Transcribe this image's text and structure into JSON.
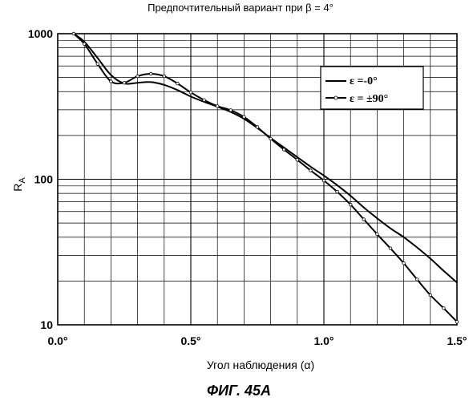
{
  "chart_data": {
    "type": "line",
    "title": "Предпочтительный вариант при β = 4°",
    "xlabel": "Угол наблюдения (α)",
    "ylabel_main": "R",
    "ylabel_sub": "A",
    "caption": "ФИГ. 45А",
    "xlim": [
      0.0,
      1.5
    ],
    "ylim": [
      10,
      1000
    ],
    "yscale": "log",
    "grid": true,
    "legend_position": "top-right",
    "x_ticks": [
      {
        "value": 0.0,
        "label": "0.0°"
      },
      {
        "value": 0.5,
        "label": "0.5°"
      },
      {
        "value": 1.0,
        "label": "1.0°"
      },
      {
        "value": 1.5,
        "label": "1.5°"
      }
    ],
    "y_ticks": [
      {
        "value": 10,
        "label": "10"
      },
      {
        "value": 100,
        "label": "100"
      },
      {
        "value": 1000,
        "label": "1000"
      }
    ],
    "series": [
      {
        "name": "ε =-0°",
        "marker": "none",
        "x": [
          0.06,
          0.1,
          0.15,
          0.2,
          0.25,
          0.3,
          0.35,
          0.4,
          0.45,
          0.5,
          0.55,
          0.6,
          0.65,
          0.7,
          0.75,
          0.8,
          0.85,
          0.9,
          0.95,
          1.0,
          1.05,
          1.1,
          1.15,
          1.2,
          1.25,
          1.3,
          1.35,
          1.4,
          1.45,
          1.5
        ],
        "y": [
          1000,
          880,
          680,
          520,
          455,
          460,
          465,
          445,
          410,
          370,
          340,
          315,
          290,
          260,
          225,
          192,
          165,
          142,
          122,
          106,
          91,
          77,
          64,
          54,
          46,
          40,
          34,
          28.5,
          23.5,
          19.5
        ]
      },
      {
        "name": "ε = ±90°",
        "marker": "circle",
        "x": [
          0.06,
          0.1,
          0.15,
          0.2,
          0.25,
          0.3,
          0.35,
          0.4,
          0.45,
          0.5,
          0.55,
          0.6,
          0.65,
          0.7,
          0.75,
          0.8,
          0.85,
          0.9,
          0.95,
          1.0,
          1.05,
          1.1,
          1.15,
          1.2,
          1.25,
          1.3,
          1.35,
          1.4,
          1.45,
          1.5
        ],
        "y": [
          1000,
          850,
          620,
          470,
          460,
          510,
          530,
          510,
          455,
          395,
          350,
          318,
          298,
          268,
          228,
          190,
          160,
          136,
          115,
          98,
          82,
          67,
          53,
          42,
          33.5,
          26.5,
          20.5,
          16,
          13,
          10.5
        ]
      }
    ]
  }
}
